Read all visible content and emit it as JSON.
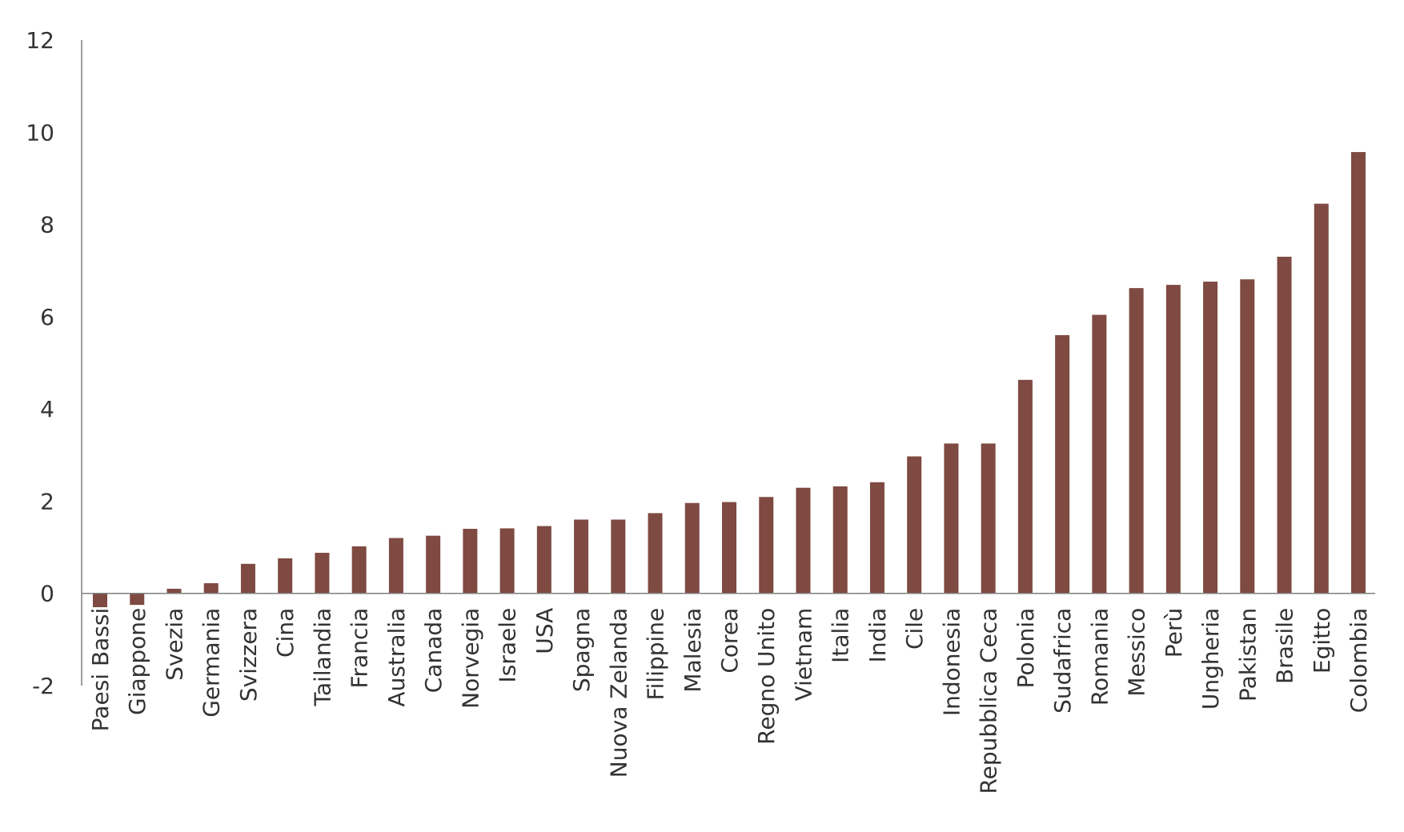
{
  "chart_data": {
    "type": "bar",
    "title": "",
    "xlabel": "",
    "ylabel": "",
    "ylim": [
      -2,
      12
    ],
    "yticks": [
      -2,
      0,
      2,
      4,
      6,
      8,
      10,
      12
    ],
    "grid": false,
    "legend": "none",
    "bar_color": "#7e4a41",
    "categories": [
      "Paesi Bassi",
      "Giappone",
      "Svezia",
      "Germania",
      "Svizzera",
      "Cina",
      "Tailandia",
      "Francia",
      "Australia",
      "Canada",
      "Norvegia",
      "Israele",
      "USA",
      "Spagna",
      "Nuova Zelanda",
      "Filippine",
      "Malesia",
      "Corea",
      "Regno Unito",
      "Vietnam",
      "Italia",
      "India",
      "Cile",
      "Indonesia",
      "Repubblica Ceca",
      "Polonia",
      "Sudafrica",
      "Romania",
      "Messico",
      "Perù",
      "Ungheria",
      "Pakistan",
      "Brasile",
      "Egitto",
      "Colombia"
    ],
    "values": [
      -0.3,
      -0.25,
      0.1,
      0.22,
      0.64,
      0.76,
      0.88,
      1.02,
      1.2,
      1.25,
      1.4,
      1.41,
      1.46,
      1.6,
      1.6,
      1.74,
      1.96,
      1.98,
      2.09,
      2.29,
      2.32,
      2.41,
      2.97,
      3.25,
      3.25,
      4.63,
      5.6,
      6.04,
      6.62,
      6.69,
      6.76,
      6.81,
      7.3,
      8.45,
      9.57
    ]
  }
}
